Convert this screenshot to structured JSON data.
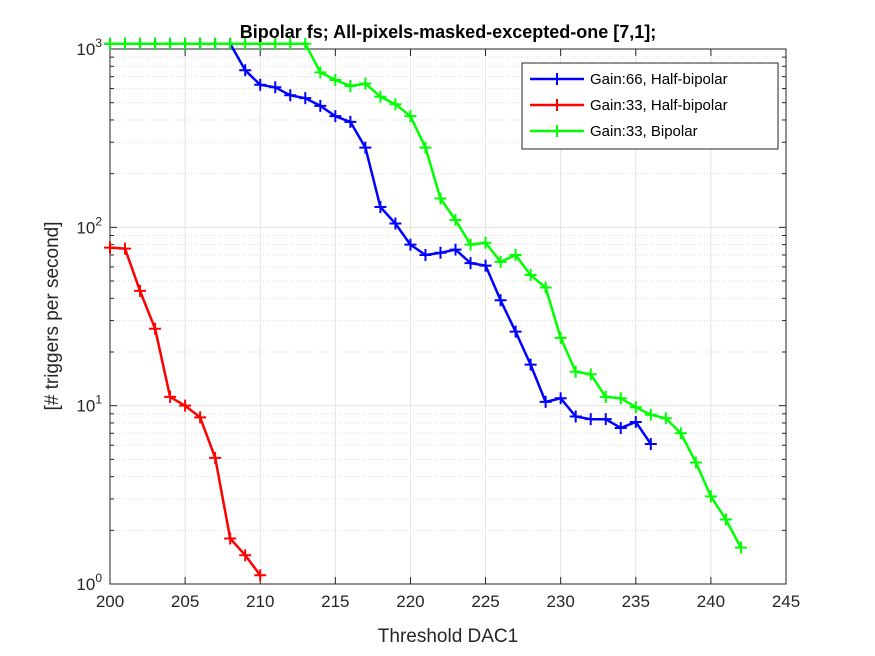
{
  "chart_data": {
    "type": "line",
    "title": "Bipolar fs; All-pixels-masked-excepted-one [7,1];",
    "xlabel": "Threshold DAC1",
    "ylabel": "[# triggers per second]",
    "xlim": [
      200,
      245
    ],
    "ylim": [
      1,
      1000
    ],
    "yscale": "log",
    "grid": "on",
    "legend_position": "top-right",
    "x_ticks": [
      "200",
      "205",
      "210",
      "215",
      "220",
      "225",
      "230",
      "235",
      "240",
      "245"
    ],
    "y_ticks": [
      {
        "base": "10",
        "exp": "0"
      },
      {
        "base": "10",
        "exp": "1"
      },
      {
        "base": "10",
        "exp": "2"
      },
      {
        "base": "10",
        "exp": "3"
      }
    ],
    "series": [
      {
        "name": "Gain:66, Half-bipolar",
        "color": "#0000ff",
        "x": [
          200,
          201,
          202,
          203,
          204,
          205,
          206,
          207,
          208,
          209,
          210,
          211,
          212,
          213,
          214,
          215,
          216,
          217,
          218,
          219,
          220,
          221,
          222,
          223,
          224,
          225,
          226,
          227,
          228,
          229,
          230,
          231,
          232,
          233,
          234,
          235,
          236
        ],
        "y": [
          1070,
          1070,
          1070,
          1070,
          1070,
          1070,
          1070,
          1070,
          1070,
          760,
          630,
          610,
          550,
          530,
          480,
          420,
          390,
          280,
          130,
          105,
          80,
          70,
          72,
          75,
          63,
          61,
          39,
          26,
          17,
          10.5,
          11,
          8.7,
          8.4,
          8.4,
          7.5,
          8.1,
          6.1
        ]
      },
      {
        "name": "Gain:33, Half-bipolar",
        "color": "#ff0000",
        "x": [
          200,
          201,
          202,
          203,
          204,
          205,
          206,
          207,
          208,
          209,
          210
        ],
        "y": [
          77,
          76,
          44,
          27,
          11.2,
          10,
          8.6,
          5.1,
          1.8,
          1.45,
          1.12
        ]
      },
      {
        "name": "Gain:33, Bipolar",
        "color": "#00ff00",
        "x": [
          200,
          201,
          202,
          203,
          204,
          205,
          206,
          207,
          208,
          209,
          210,
          211,
          212,
          213,
          214,
          215,
          216,
          217,
          218,
          219,
          220,
          221,
          222,
          223,
          224,
          225,
          226,
          227,
          228,
          229,
          230,
          231,
          232,
          233,
          234,
          235,
          236,
          237,
          238,
          239,
          240,
          241,
          242
        ],
        "y": [
          1070,
          1070,
          1070,
          1070,
          1070,
          1070,
          1070,
          1070,
          1070,
          1070,
          1070,
          1070,
          1070,
          1070,
          740,
          670,
          620,
          640,
          540,
          490,
          420,
          280,
          145,
          110,
          80,
          82,
          64,
          70,
          54,
          46,
          24,
          15.5,
          15,
          11.2,
          11,
          9.8,
          8.9,
          8.5,
          7,
          4.8,
          3.1,
          2.3,
          1.6
        ]
      }
    ]
  }
}
